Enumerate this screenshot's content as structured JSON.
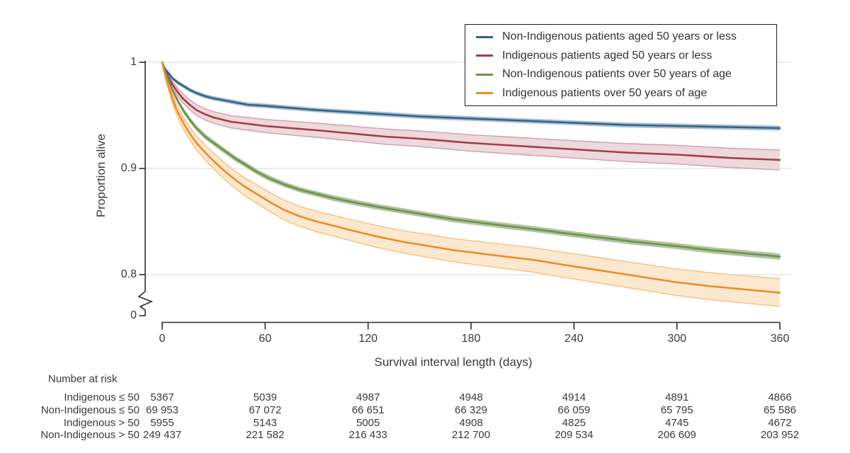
{
  "chart_data": {
    "type": "line",
    "subtype": "kaplan-meier-survival-curves-with-confidence-bands",
    "title": "",
    "xlabel": "Survival interval length (days)",
    "ylabel": "Proportion alive",
    "xlim": [
      0,
      360
    ],
    "ylim_display": [
      0.77,
      1.0
    ],
    "y_axis_break_to_zero": true,
    "x_ticks": [
      0,
      60,
      120,
      180,
      240,
      300,
      360
    ],
    "y_tick_labels": [
      "1",
      "0.9",
      "0.8",
      "0"
    ],
    "y_tick_values": [
      1,
      0.9,
      0.8,
      0
    ],
    "grid": "horizontal",
    "gridline_values": [
      1,
      0.9,
      0.8
    ],
    "legend_position": "top-right",
    "colors": {
      "grid": "#dfeaec",
      "axis": "#2b2b2b",
      "text": "#3a3a3a",
      "legend_border": "#1d1d1d"
    },
    "series": [
      {
        "name": "Non-Indigenous patients aged 50 years or less",
        "key": "non-indigenous-le-50",
        "color": "#31618c",
        "band_fill": "#a9c0d4",
        "band_edge": "#a9c0d4",
        "points": [
          [
            0,
            1.0,
            0
          ],
          [
            1,
            0.996,
            0.001
          ],
          [
            2,
            0.993,
            0.001
          ],
          [
            4,
            0.989,
            0.0012
          ],
          [
            6,
            0.985,
            0.0013
          ],
          [
            9,
            0.981,
            0.0014
          ],
          [
            12,
            0.978,
            0.0015
          ],
          [
            16,
            0.974,
            0.0015
          ],
          [
            20,
            0.971,
            0.0016
          ],
          [
            25,
            0.968,
            0.0016
          ],
          [
            30,
            0.966,
            0.0016
          ],
          [
            40,
            0.963,
            0.0016
          ],
          [
            50,
            0.96,
            0.0017
          ],
          [
            60,
            0.959,
            0.0017
          ],
          [
            75,
            0.957,
            0.0017
          ],
          [
            90,
            0.955,
            0.0017
          ],
          [
            110,
            0.953,
            0.0017
          ],
          [
            130,
            0.951,
            0.0018
          ],
          [
            150,
            0.949,
            0.0018
          ],
          [
            180,
            0.947,
            0.0018
          ],
          [
            210,
            0.945,
            0.0018
          ],
          [
            240,
            0.943,
            0.0018
          ],
          [
            270,
            0.941,
            0.0019
          ],
          [
            300,
            0.94,
            0.0019
          ],
          [
            330,
            0.939,
            0.0019
          ],
          [
            360,
            0.938,
            0.0019
          ]
        ]
      },
      {
        "name": "Indigenous patients aged 50 years or less",
        "key": "indigenous-le-50",
        "color": "#a23c46",
        "band_fill": "#edd8dc",
        "band_edge": "#cf9fab",
        "points": [
          [
            0,
            1.0,
            0
          ],
          [
            1,
            0.995,
            0.0015
          ],
          [
            2,
            0.991,
            0.002
          ],
          [
            4,
            0.985,
            0.0027
          ],
          [
            6,
            0.979,
            0.0032
          ],
          [
            9,
            0.972,
            0.0038
          ],
          [
            12,
            0.966,
            0.0042
          ],
          [
            16,
            0.96,
            0.0046
          ],
          [
            20,
            0.955,
            0.005
          ],
          [
            25,
            0.951,
            0.0053
          ],
          [
            30,
            0.948,
            0.0055
          ],
          [
            40,
            0.944,
            0.0058
          ],
          [
            50,
            0.942,
            0.006
          ],
          [
            60,
            0.94,
            0.0062
          ],
          [
            75,
            0.938,
            0.0065
          ],
          [
            90,
            0.936,
            0.0067
          ],
          [
            110,
            0.933,
            0.007
          ],
          [
            130,
            0.93,
            0.0072
          ],
          [
            150,
            0.928,
            0.0074
          ],
          [
            180,
            0.924,
            0.0077
          ],
          [
            210,
            0.921,
            0.008
          ],
          [
            240,
            0.918,
            0.0082
          ],
          [
            270,
            0.915,
            0.0085
          ],
          [
            300,
            0.913,
            0.0088
          ],
          [
            330,
            0.91,
            0.0091
          ],
          [
            360,
            0.908,
            0.0094
          ]
        ]
      },
      {
        "name": "Non-Indigenous patients over 50 years of age",
        "key": "non-indigenous-gt-50",
        "color": "#6d9150",
        "band_fill": "#b0c49c",
        "band_edge": "#b0c49c",
        "points": [
          [
            0,
            1.0,
            0
          ],
          [
            1,
            0.995,
            0.0008
          ],
          [
            2,
            0.99,
            0.001
          ],
          [
            4,
            0.982,
            0.0012
          ],
          [
            6,
            0.974,
            0.0014
          ],
          [
            8,
            0.967,
            0.0015
          ],
          [
            10,
            0.961,
            0.0016
          ],
          [
            13,
            0.953,
            0.0017
          ],
          [
            16,
            0.946,
            0.0018
          ],
          [
            20,
            0.938,
            0.0018
          ],
          [
            25,
            0.93,
            0.0019
          ],
          [
            30,
            0.924,
            0.0019
          ],
          [
            36,
            0.917,
            0.002
          ],
          [
            42,
            0.91,
            0.002
          ],
          [
            48,
            0.904,
            0.002
          ],
          [
            55,
            0.897,
            0.002
          ],
          [
            62,
            0.891,
            0.0021
          ],
          [
            71,
            0.885,
            0.0021
          ],
          [
            80,
            0.88,
            0.0021
          ],
          [
            90,
            0.876,
            0.0021
          ],
          [
            100,
            0.872,
            0.0022
          ],
          [
            112,
            0.868,
            0.0022
          ],
          [
            125,
            0.864,
            0.0022
          ],
          [
            140,
            0.86,
            0.0022
          ],
          [
            155,
            0.856,
            0.0022
          ],
          [
            170,
            0.852,
            0.0023
          ],
          [
            185,
            0.849,
            0.0023
          ],
          [
            200,
            0.846,
            0.0023
          ],
          [
            216,
            0.843,
            0.0023
          ],
          [
            235,
            0.839,
            0.0023
          ],
          [
            255,
            0.835,
            0.0024
          ],
          [
            275,
            0.831,
            0.0024
          ],
          [
            299,
            0.827,
            0.0024
          ],
          [
            320,
            0.823,
            0.0025
          ],
          [
            340,
            0.82,
            0.0025
          ],
          [
            360,
            0.817,
            0.0025
          ]
        ]
      },
      {
        "name": "Indigenous patients over 50 years of age",
        "key": "indigenous-gt-50",
        "color": "#ee8b26",
        "band_fill": "#fbe8cf",
        "band_edge": "#f4c083",
        "points": [
          [
            0,
            1.0,
            0
          ],
          [
            1,
            0.993,
            0.002
          ],
          [
            2,
            0.987,
            0.0027
          ],
          [
            4,
            0.976,
            0.0035
          ],
          [
            6,
            0.966,
            0.0042
          ],
          [
            8,
            0.957,
            0.0048
          ],
          [
            10,
            0.95,
            0.0052
          ],
          [
            13,
            0.941,
            0.0057
          ],
          [
            16,
            0.933,
            0.0061
          ],
          [
            20,
            0.924,
            0.0066
          ],
          [
            25,
            0.915,
            0.007
          ],
          [
            30,
            0.907,
            0.0074
          ],
          [
            36,
            0.898,
            0.0078
          ],
          [
            42,
            0.89,
            0.0081
          ],
          [
            48,
            0.883,
            0.0084
          ],
          [
            55,
            0.876,
            0.0087
          ],
          [
            62,
            0.869,
            0.0089
          ],
          [
            71,
            0.861,
            0.0092
          ],
          [
            80,
            0.855,
            0.0094
          ],
          [
            90,
            0.85,
            0.0096
          ],
          [
            100,
            0.846,
            0.0098
          ],
          [
            112,
            0.841,
            0.01
          ],
          [
            125,
            0.836,
            0.0103
          ],
          [
            140,
            0.831,
            0.0105
          ],
          [
            155,
            0.827,
            0.0107
          ],
          [
            170,
            0.823,
            0.0109
          ],
          [
            185,
            0.82,
            0.0111
          ],
          [
            200,
            0.817,
            0.0113
          ],
          [
            216,
            0.814,
            0.0115
          ],
          [
            235,
            0.809,
            0.0118
          ],
          [
            255,
            0.804,
            0.012
          ],
          [
            275,
            0.799,
            0.0122
          ],
          [
            299,
            0.793,
            0.0125
          ],
          [
            320,
            0.789,
            0.0127
          ],
          [
            340,
            0.786,
            0.0129
          ],
          [
            360,
            0.783,
            0.0131
          ]
        ]
      }
    ]
  },
  "risk_table": {
    "header": "Number at risk",
    "rows": [
      {
        "label": "Indigenous ≤ 50",
        "values": [
          "5367",
          "5039",
          "4987",
          "4948",
          "4914",
          "4891",
          "4866"
        ]
      },
      {
        "label": "Non-Indigenous ≤ 50",
        "values": [
          "69 953",
          "67 072",
          "66 651",
          "66 329",
          "66 059",
          "65 795",
          "65 586"
        ]
      },
      {
        "label": "Indigenous > 50",
        "values": [
          "5955",
          "5143",
          "5005",
          "4908",
          "4825",
          "4745",
          "4672"
        ]
      },
      {
        "label": "Non-Indigenous > 50",
        "values": [
          "249 437",
          "221 582",
          "216 433",
          "212 700",
          "209 534",
          "206 609",
          "203 952"
        ]
      }
    ]
  }
}
